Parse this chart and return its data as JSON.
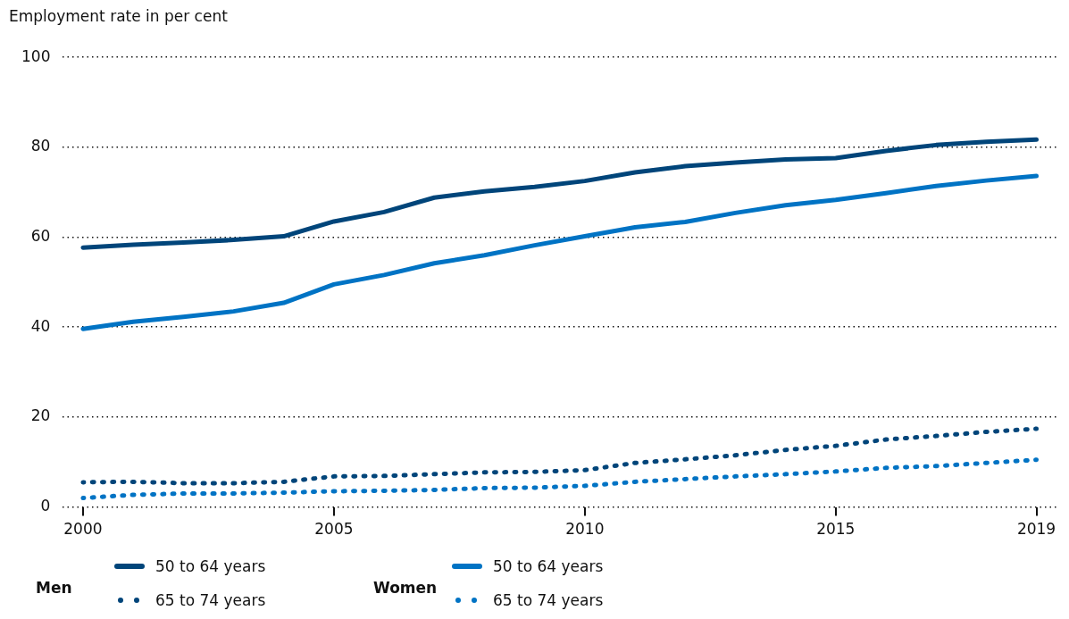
{
  "chart_data": {
    "type": "line",
    "ylabel": "Employment rate in per cent",
    "x": [
      2000,
      2001,
      2002,
      2003,
      2004,
      2005,
      2006,
      2007,
      2008,
      2009,
      2010,
      2011,
      2012,
      2013,
      2014,
      2015,
      2016,
      2017,
      2018,
      2019
    ],
    "xlim": [
      1999.6,
      2019.4
    ],
    "xticks": [
      2000,
      2005,
      2010,
      2015,
      2019
    ],
    "ylim": [
      0,
      100
    ],
    "yticks": [
      0,
      20,
      40,
      60,
      80,
      100
    ],
    "grid": "y",
    "legend": "bottom",
    "marker": "none",
    "annotations": [
      "Men",
      "Women"
    ],
    "series": [
      {
        "name": "50 to 64 years",
        "color": "#00457a",
        "line_style": "solid",
        "values": [
          57.7,
          58.3,
          58.8,
          59.4,
          60.2,
          63.5,
          65.6,
          68.8,
          70.2,
          71.2,
          72.5,
          74.4,
          75.8,
          76.6,
          77.3,
          77.6,
          79.2,
          80.5,
          81.2,
          81.7
        ]
      },
      {
        "name": "65 to 74 years",
        "color": "#00457a",
        "line_style": "dotted",
        "values": [
          5.5,
          5.6,
          5.3,
          5.3,
          5.6,
          6.8,
          6.9,
          7.3,
          7.7,
          7.8,
          8.2,
          9.8,
          10.6,
          11.5,
          12.7,
          13.6,
          15.0,
          15.8,
          16.7,
          17.4
        ]
      },
      {
        "name": "50 to 64 years",
        "color": "#0073c4",
        "line_style": "solid",
        "values": [
          39.6,
          41.2,
          42.3,
          43.5,
          45.4,
          49.5,
          51.6,
          54.2,
          56.0,
          58.2,
          60.2,
          62.2,
          63.4,
          65.4,
          67.1,
          68.3,
          69.8,
          71.4,
          72.6,
          73.6
        ]
      },
      {
        "name": "65 to 74 years",
        "color": "#0073c4",
        "line_style": "dotted",
        "values": [
          2.0,
          2.7,
          3.0,
          3.0,
          3.2,
          3.5,
          3.6,
          3.8,
          4.2,
          4.3,
          4.7,
          5.6,
          6.2,
          6.8,
          7.3,
          7.9,
          8.7,
          9.1,
          9.8,
          10.5
        ]
      }
    ]
  }
}
